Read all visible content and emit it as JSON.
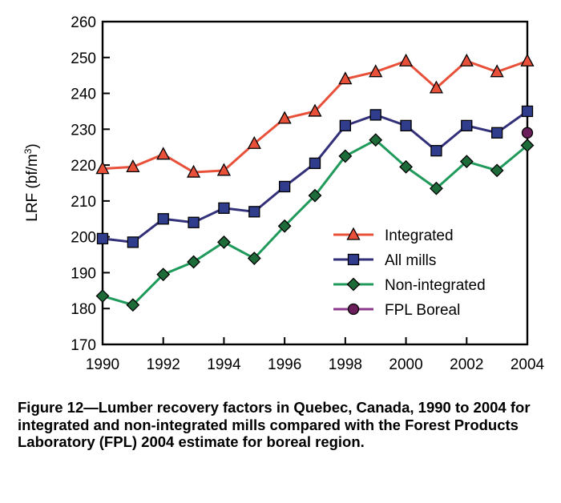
{
  "chart_data": {
    "type": "line",
    "title": "",
    "xlabel": "",
    "ylabel": "LRF (bf/m³)",
    "ylabel_main": "LRF (bf/m",
    "ylabel_sup": "3",
    "ylabel_end": ")",
    "xlim": [
      1990,
      2004
    ],
    "ylim": [
      170,
      260
    ],
    "x_ticks": [
      1990,
      1992,
      1994,
      1996,
      1998,
      2000,
      2002,
      2004
    ],
    "y_ticks": [
      170,
      180,
      190,
      200,
      210,
      220,
      230,
      240,
      250,
      260
    ],
    "grid": false,
    "legend_position": "bottom-right",
    "x": [
      1990,
      1991,
      1992,
      1993,
      1994,
      1995,
      1996,
      1997,
      1998,
      1999,
      2000,
      2001,
      2002,
      2003,
      2004
    ],
    "series": [
      {
        "name": "Integrated",
        "color": "#e8503a",
        "marker": "triangle",
        "marker_fill": "#e8503a",
        "values": [
          219,
          219.5,
          223,
          218,
          218.5,
          226,
          233,
          235,
          244,
          246,
          249,
          241.5,
          249,
          246,
          249
        ]
      },
      {
        "name": "All mills",
        "color": "#33307a",
        "marker": "square",
        "marker_fill": "#2f3d8c",
        "values": [
          199.5,
          198.5,
          205,
          204,
          208,
          207,
          214,
          220.5,
          231,
          234,
          231,
          224,
          231,
          229,
          235
        ]
      },
      {
        "name": "Non-integrated",
        "color": "#1f9a5a",
        "marker": "diamond",
        "marker_fill": "#1e6b3a",
        "values": [
          183.5,
          181,
          189.5,
          193,
          198.5,
          194,
          203,
          211.5,
          222.5,
          227,
          219.5,
          213.5,
          221,
          218.5,
          225.5
        ]
      },
      {
        "name": "FPL Boreal",
        "color": "#8b3a8b",
        "marker": "circle",
        "marker_fill": "#6a1f5a",
        "x": [
          2004
        ],
        "values": [
          229
        ]
      }
    ]
  },
  "caption": "Figure 12—Lumber recovery factors in Quebec, Canada, 1990 to 2004 for integrated and non-integrated mills compared with the Forest Products Laboratory (FPL) 2004 estimate for boreal region."
}
